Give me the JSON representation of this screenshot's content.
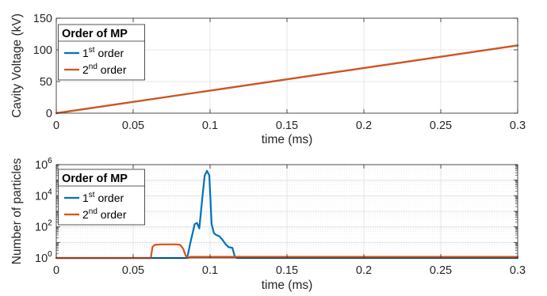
{
  "chart_data": [
    {
      "type": "line",
      "xlabel": "time (ms)",
      "ylabel": "Cavity Voltage (kV)",
      "xlim": [
        0,
        0.3
      ],
      "ylim": [
        0,
        150
      ],
      "xticks": [
        "0",
        "0.05",
        "0.1",
        "0.15",
        "0.2",
        "0.25",
        "0.3"
      ],
      "yticks": [
        "0",
        "50",
        "100",
        "150"
      ],
      "grid": true,
      "legend": {
        "title": "Order of MP",
        "placement": "top-left",
        "entries": [
          {
            "pre": "1",
            "sup": "st",
            "post": " order"
          },
          {
            "pre": "2",
            "sup": "nd",
            "post": " order"
          }
        ]
      },
      "series": [
        {
          "name": "1st order",
          "color": "#0072BD",
          "x": [
            0,
            0.3
          ],
          "y": [
            0,
            107
          ]
        },
        {
          "name": "2nd order",
          "color": "#D95319",
          "x": [
            0,
            0.3
          ],
          "y": [
            0,
            107
          ]
        }
      ]
    },
    {
      "type": "line",
      "yscale": "log",
      "xlabel": "time (ms)",
      "ylabel": "Number of particles",
      "xlim": [
        0,
        0.3
      ],
      "ylim": [
        1,
        1000000
      ],
      "xticks": [
        "0",
        "0.05",
        "0.1",
        "0.15",
        "0.2",
        "0.25",
        "0.3"
      ],
      "yticks": [
        {
          "base": "10",
          "exp": "0"
        },
        {
          "base": "10",
          "exp": "2"
        },
        {
          "base": "10",
          "exp": "4"
        },
        {
          "base": "10",
          "exp": "6"
        }
      ],
      "grid": true,
      "legend": {
        "title": "Order of MP",
        "placement": "top-left",
        "entries": [
          {
            "pre": "1",
            "sup": "st",
            "post": " order"
          },
          {
            "pre": "2",
            "sup": "nd",
            "post": " order"
          }
        ]
      },
      "series": [
        {
          "name": "1st order",
          "color": "#0072BD",
          "x": [
            0,
            0.061,
            0.0615,
            0.0845,
            0.0855,
            0.087,
            0.09,
            0.0915,
            0.093,
            0.095,
            0.0965,
            0.098,
            0.0995,
            0.101,
            0.1025,
            0.104,
            0.106,
            0.108,
            0.11,
            0.112,
            0.1145,
            0.116,
            0.1175,
            0.3
          ],
          "y": [
            1,
            1,
            1,
            1,
            1.5,
            8,
            150,
            180,
            80,
            8000,
            200000,
            400000,
            200000,
            150,
            40,
            30,
            25,
            15,
            8,
            5,
            4.5,
            1.3,
            1,
            1
          ]
        },
        {
          "name": "2nd order",
          "color": "#D95319",
          "x": [
            0,
            0.0615,
            0.0625,
            0.064,
            0.068,
            0.074,
            0.078,
            0.0805,
            0.0825,
            0.084,
            0.0855,
            0.087,
            0.3
          ],
          "y": [
            1,
            1,
            5,
            7,
            7.5,
            7.5,
            7.5,
            7,
            4,
            1.5,
            1,
            1.2,
            1.2
          ]
        }
      ]
    }
  ]
}
